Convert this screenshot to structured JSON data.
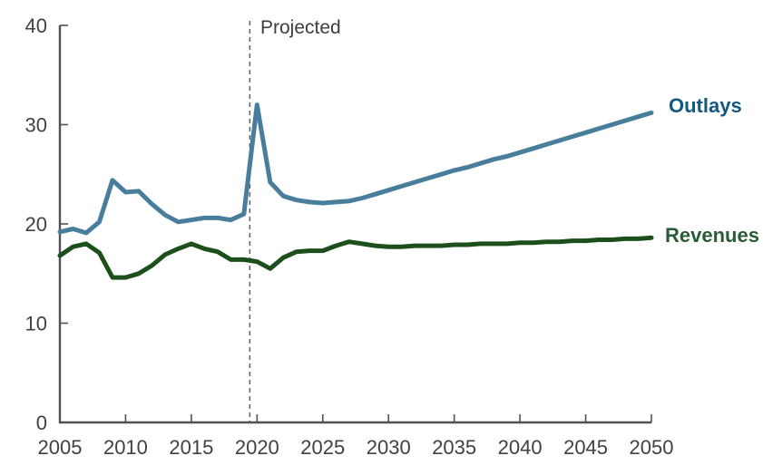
{
  "chart_data": {
    "type": "line",
    "title": "",
    "xlabel": "",
    "ylabel": "",
    "xlim": [
      2005,
      2050
    ],
    "ylim": [
      0,
      40
    ],
    "yticks": [
      0,
      10,
      20,
      30,
      40
    ],
    "xticks": [
      2005,
      2010,
      2015,
      2020,
      2025,
      2030,
      2035,
      2040,
      2045,
      2050
    ],
    "grid": "off",
    "legend": "inline-line-end-labels",
    "projected_divider": {
      "label": "Projected",
      "year": 2019.45
    },
    "x": [
      2005,
      2006,
      2007,
      2008,
      2009,
      2010,
      2011,
      2012,
      2013,
      2014,
      2015,
      2016,
      2017,
      2018,
      2019,
      2020,
      2021,
      2022,
      2023,
      2024,
      2025,
      2026,
      2027,
      2028,
      2029,
      2030,
      2031,
      2032,
      2033,
      2034,
      2035,
      2036,
      2037,
      2038,
      2039,
      2040,
      2041,
      2042,
      2043,
      2044,
      2045,
      2046,
      2047,
      2048,
      2049,
      2050
    ],
    "series": [
      {
        "name": "Outlays",
        "color": "#487E9C",
        "label_color": "#13587E",
        "values": [
          19.2,
          19.5,
          19.1,
          20.2,
          24.4,
          23.2,
          23.3,
          22.0,
          20.9,
          20.2,
          20.4,
          20.6,
          20.6,
          20.4,
          21.0,
          32.0,
          24.2,
          22.8,
          22.4,
          22.2,
          22.1,
          22.2,
          22.3,
          22.6,
          23.0,
          23.4,
          23.8,
          24.2,
          24.6,
          25.0,
          25.4,
          25.7,
          26.1,
          26.5,
          26.8,
          27.2,
          27.6,
          28.0,
          28.4,
          28.8,
          29.2,
          29.6,
          30.0,
          30.4,
          30.8,
          31.2
        ]
      },
      {
        "name": "Revenues",
        "color": "#1D4F1D",
        "label_color": "#295C35",
        "values": [
          16.8,
          17.7,
          18.0,
          17.1,
          14.6,
          14.6,
          15.0,
          15.8,
          16.9,
          17.5,
          18.0,
          17.5,
          17.2,
          16.4,
          16.4,
          16.2,
          15.5,
          16.6,
          17.2,
          17.3,
          17.3,
          17.8,
          18.2,
          18.0,
          17.8,
          17.7,
          17.7,
          17.8,
          17.8,
          17.8,
          17.9,
          17.9,
          18.0,
          18.0,
          18.0,
          18.1,
          18.1,
          18.2,
          18.2,
          18.3,
          18.3,
          18.4,
          18.4,
          18.5,
          18.5,
          18.6
        ]
      }
    ]
  },
  "labels": {
    "outlays": "Outlays",
    "revenues": "Revenues",
    "projected": "Projected"
  },
  "axis": {
    "line_color": "#515155",
    "tick_label_color": "#3F4146",
    "divider_color": "#58585A"
  }
}
